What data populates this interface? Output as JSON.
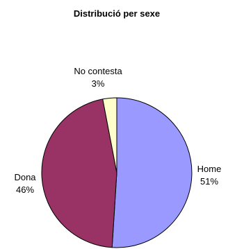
{
  "chart_data": {
    "type": "pie",
    "title": "Distribució per sexe",
    "slices": [
      {
        "label": "Home",
        "value": 51,
        "value_label": "51%",
        "color": "#9999ff"
      },
      {
        "label": "Dona",
        "value": 46,
        "value_label": "46%",
        "color": "#993366"
      },
      {
        "label": "No contesta",
        "value": 3,
        "value_label": "3%",
        "color": "#ffffcc"
      }
    ],
    "start_angle": "12 o'clock",
    "direction": "clockwise",
    "legend": "none"
  }
}
